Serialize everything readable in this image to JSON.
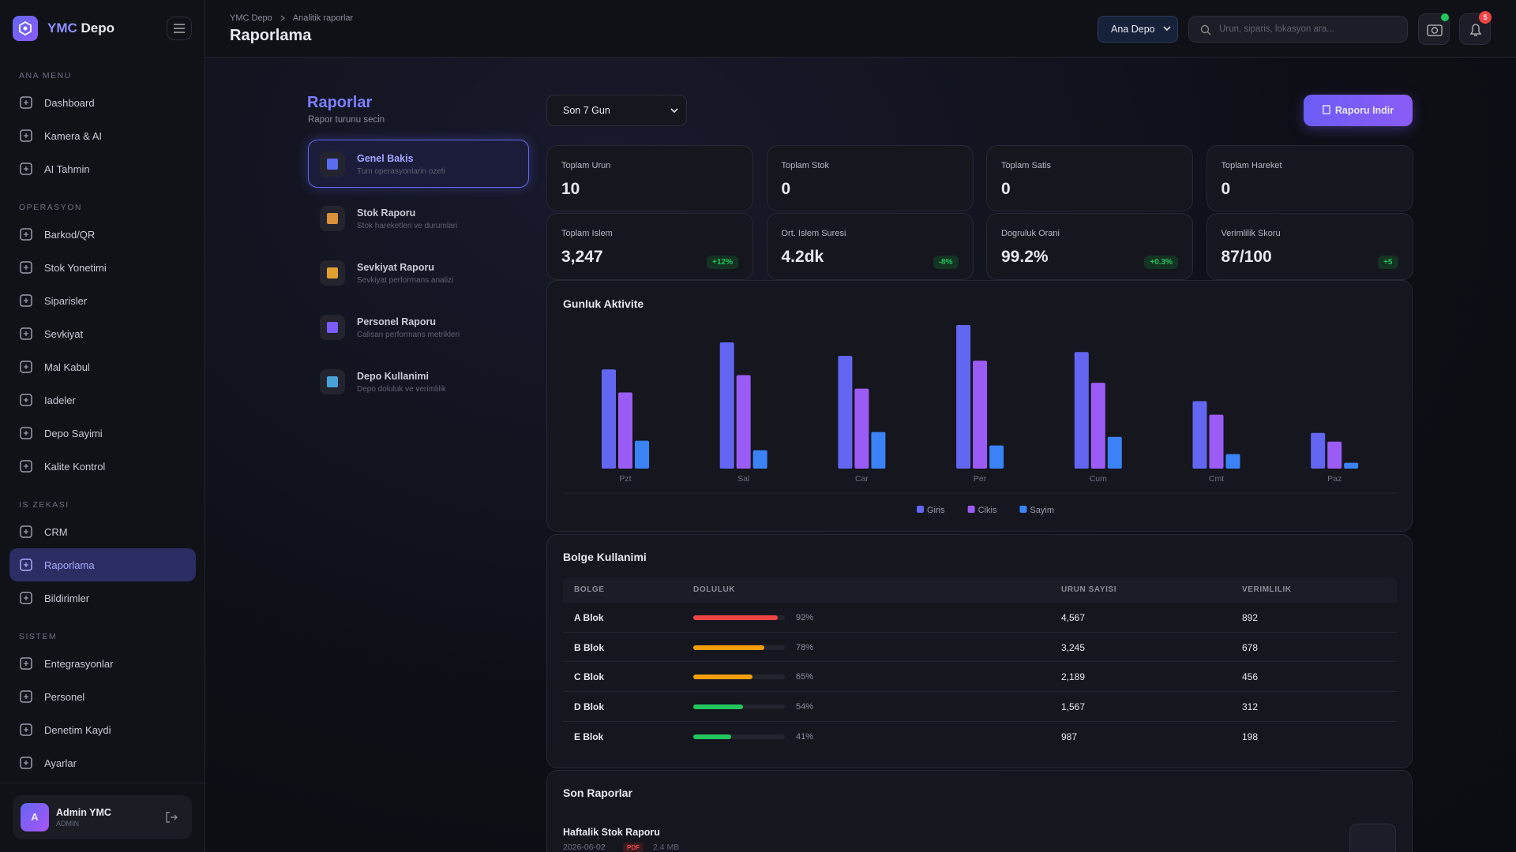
{
  "sidebar": {
    "brand": {
      "first": "YMC",
      "second": "Depo"
    },
    "sections": [
      {
        "title": "ANA MENU",
        "items": [
          {
            "label": "Dashboard"
          },
          {
            "label": "Kamera & AI"
          },
          {
            "label": "AI Tahmin"
          }
        ]
      },
      {
        "title": "OPERASYON",
        "items": [
          {
            "label": "Barkod/QR"
          },
          {
            "label": "Stok Yonetimi"
          },
          {
            "label": "Siparisler"
          },
          {
            "label": "Sevkiyat"
          },
          {
            "label": "Mal Kabul"
          },
          {
            "label": "Iadeler"
          },
          {
            "label": "Depo Sayimi"
          },
          {
            "label": "Kalite Kontrol"
          }
        ]
      },
      {
        "title": "IS ZEKASI",
        "items": [
          {
            "label": "CRM"
          },
          {
            "label": "Raporlama",
            "active": true
          },
          {
            "label": "Bildirimler"
          }
        ]
      },
      {
        "title": "SISTEM",
        "items": [
          {
            "label": "Entegrasyonlar"
          },
          {
            "label": "Personel"
          },
          {
            "label": "Denetim Kaydi"
          },
          {
            "label": "Ayarlar"
          }
        ]
      }
    ],
    "user": {
      "initial": "A",
      "name": "Admin YMC",
      "role": "ADMIN"
    }
  },
  "header": {
    "breadcrumb": [
      "YMC Depo",
      "Analitik raporlar"
    ],
    "title": "Raporlama",
    "warehouse": "Ana Depo",
    "search_placeholder": "Urun, siparis, lokasyon ara...",
    "notification_count": "5"
  },
  "reports_panel": {
    "title": "Raporlar",
    "subtitle": "Rapor turunu secin",
    "items": [
      {
        "title": "Genel Bakis",
        "description": "Tum operasyonlarin ozeti",
        "active": true
      },
      {
        "title": "Stok Raporu",
        "description": "Stok hareketleri ve durumlari"
      },
      {
        "title": "Sevkiyat Raporu",
        "description": "Sevkiyat performans analizi"
      },
      {
        "title": "Personel Raporu",
        "description": "Calisan performans metrikleri"
      },
      {
        "title": "Depo Kullanimi",
        "description": "Depo doluluk ve verimlilik"
      }
    ]
  },
  "period": "Son 7 Gun",
  "download_button": "Raporu Indir",
  "stats": [
    {
      "label": "Toplam Urun",
      "value": "10"
    },
    {
      "label": "Toplam Stok",
      "value": "0"
    },
    {
      "label": "Toplam Satis",
      "value": "0"
    },
    {
      "label": "Toplam Hareket",
      "value": "0"
    },
    {
      "label": "Toplam Islem",
      "value": "3,247",
      "change": "+12%"
    },
    {
      "label": "Ort. Islem Suresi",
      "value": "4.2dk",
      "change": "-8%"
    },
    {
      "label": "Dogruluk Orani",
      "value": "99.2%",
      "change": "+0.3%"
    },
    {
      "label": "Verimlilik Skoru",
      "value": "87/100",
      "change": "+5"
    }
  ],
  "chart_data": {
    "type": "bar",
    "title": "Gunluk Aktivite",
    "categories": [
      "Pzt",
      "Sal",
      "Car",
      "Per",
      "Cum",
      "Cmt",
      "Paz"
    ],
    "series": [
      {
        "name": "Giris",
        "color": "#6366f1",
        "values": [
          103,
          131,
          117,
          149,
          121,
          70,
          37
        ]
      },
      {
        "name": "Cikis",
        "color": "#9b5cf6",
        "values": [
          79,
          97,
          83,
          112,
          89,
          56,
          28
        ]
      },
      {
        "name": "Sayim",
        "color": "#3b82f6",
        "values": [
          29,
          19,
          38,
          24,
          33,
          15,
          6
        ]
      }
    ]
  },
  "zone_usage": {
    "title": "Bolge Kullanimi",
    "columns": [
      "BOLGE",
      "DOLULUK",
      "URUN SAYISI",
      "VERIMLILIK"
    ],
    "rows": [
      {
        "zone": "A Blok",
        "fill": 92,
        "fill_label": "92%",
        "color": "#ef4444",
        "products": "4,567",
        "efficiency": "892"
      },
      {
        "zone": "B Blok",
        "fill": 78,
        "fill_label": "78%",
        "color": "#f59e0b",
        "products": "3,245",
        "efficiency": "678"
      },
      {
        "zone": "C Blok",
        "fill": 65,
        "fill_label": "65%",
        "color": "#f59e0b",
        "products": "2,189",
        "efficiency": "456"
      },
      {
        "zone": "D Blok",
        "fill": 54,
        "fill_label": "54%",
        "color": "#22c55e",
        "products": "1,567",
        "efficiency": "312"
      },
      {
        "zone": "E Blok",
        "fill": 41,
        "fill_label": "41%",
        "color": "#22c55e",
        "products": "987",
        "efficiency": "198"
      }
    ]
  },
  "recent_reports": {
    "title": "Son Raporlar",
    "items": [
      {
        "name": "Haftalik Stok Raporu",
        "date": "2026-06-02",
        "format": "PDF",
        "size": "2.4 MB"
      }
    ]
  }
}
